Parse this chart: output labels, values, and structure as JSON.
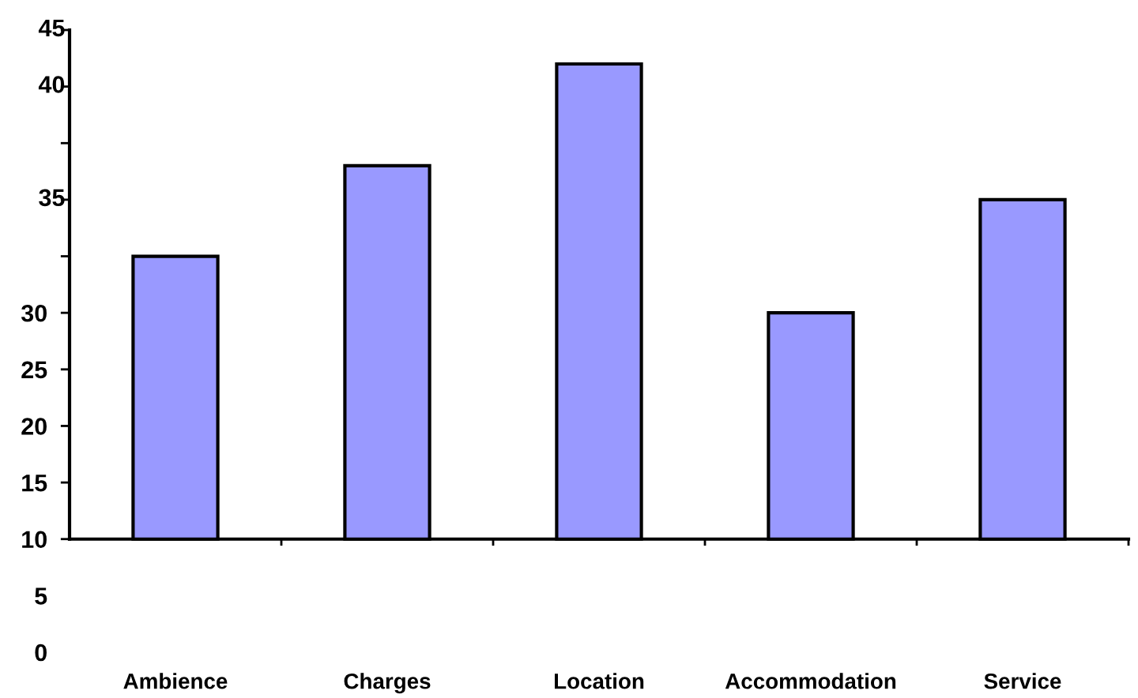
{
  "chart_data": {
    "type": "bar",
    "categories": [
      "Ambience",
      "Charges",
      "Location",
      "Accommodation",
      "Service"
    ],
    "base": [
      10,
      10,
      10,
      10,
      10
    ],
    "values": [
      25,
      33,
      42,
      20,
      30
    ],
    "color": "#9999ff",
    "ylim": [
      0,
      55
    ],
    "yticks": [
      0,
      5,
      10,
      15,
      20,
      25,
      30,
      {
        "value": 35,
        "label": null
      },
      {
        "value": 40,
        "label": null
      },
      {
        "value": 45,
        "label": null
      },
      {
        "value": 50,
        "label": null
      },
      {
        "value": 55,
        "label": null
      }
    ],
    "annotations": [
      "35",
      "40",
      "45"
    ]
  }
}
